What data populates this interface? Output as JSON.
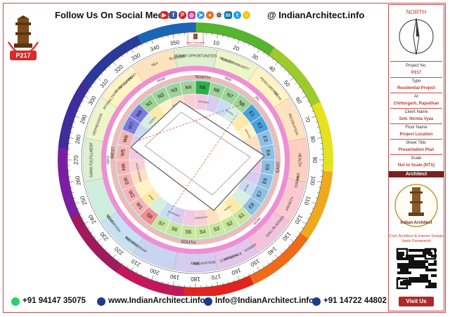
{
  "header": {
    "social_title": "Follow Us On Social Media",
    "website": "@ IndianArchitect.info"
  },
  "logo": {
    "code": "P217"
  },
  "footer": {
    "phone1": "+91 94147 35075",
    "website": "www.IndianArchitect.info",
    "email": "Info@IndianArchitect.info",
    "phone2": "+91 14722 44802"
  },
  "panel": {
    "north": "NORTH",
    "project_no_label": "Project No.",
    "project_no": "P217",
    "type_label": "Type",
    "type": "Residential Project",
    "at_label": "At",
    "at": "Chittorgarh, Rajasthan",
    "client_label": "Client Name",
    "client": "Smt. Nirmla Vyas",
    "floor_label": "Floor Name",
    "floor": "Project Location",
    "sheet_label": "Sheet Title:",
    "sheet": "Presentation Plan",
    "scale_label": "Scale",
    "scale": "Not to Scale (NTS)",
    "architect_label": "Architect",
    "firm_line1": "Civil, Architect & Interior Design",
    "firm_line2": "Vastu Paramarsh",
    "visit": "Visit Us",
    "emblem_text": "Indian Architect"
  },
  "wheel": {
    "degrees": [
      "0",
      "10",
      "20",
      "30",
      "40",
      "50",
      "60",
      "70",
      "80",
      "90",
      "100",
      "110",
      "120",
      "130",
      "140",
      "150",
      "160",
      "170",
      "180",
      "190",
      "200",
      "210",
      "220",
      "230",
      "240",
      "250",
      "260",
      "270",
      "280",
      "290",
      "300",
      "310",
      "320",
      "330",
      "340",
      "350"
    ],
    "center_badge": "Vastu Paramarsh",
    "influences": [
      {
        "t": "MONEY OPPORTUNITIES",
        "a": 0
      },
      {
        "t": "HEALTH IMMUNITY",
        "a": 22
      },
      {
        "t": "ATTRACTION",
        "a": 305
      },
      {
        "t": "SEX",
        "a": 337
      },
      {
        "t": "BLADDER",
        "a": 350
      },
      {
        "t": "KIDNEY",
        "a": 18
      },
      {
        "t": "IDEAS",
        "a": 52
      },
      {
        "t": "PERICARDIUM",
        "a": 45
      },
      {
        "t": "INTESTINE",
        "a": 318
      },
      {
        "t": "BANK SUPPORT",
        "a": 318
      },
      {
        "t": "DEPRESSION",
        "a": 290
      },
      {
        "t": "GAINS FULFILLMENT",
        "a": 270
      },
      {
        "t": "EDUCATION",
        "a": 232
      },
      {
        "t": "SAVINGS",
        "a": 218
      },
      {
        "t": "RELATIONSHIP",
        "a": 215
      },
      {
        "t": "FAME",
        "a": 180
      },
      {
        "t": "RELAXATION",
        "a": 175
      },
      {
        "t": "CONFIDENCE",
        "a": 160
      },
      {
        "t": "POWER",
        "a": 148
      },
      {
        "t": "SPLEEN",
        "a": 160
      },
      {
        "t": "ANXIETY",
        "a": 115
      },
      {
        "t": "SOCIAL",
        "a": 102
      },
      {
        "t": "LIVER",
        "a": 100
      },
      {
        "t": "GALL BLADDER",
        "a": 130
      },
      {
        "t": "HEART",
        "a": 235
      },
      {
        "t": "HEALTH",
        "a": 90
      },
      {
        "t": "RECREATION",
        "a": 70
      }
    ],
    "rings": {
      "directions": [
        {
          "t": "NORTH",
          "a": 5
        },
        {
          "t": "EAST",
          "a": 95
        },
        {
          "t": "SOUTH",
          "a": 185
        },
        {
          "t": "WEST",
          "a": 275
        }
      ],
      "elements": [
        {
          "t": "VAYU",
          "a": 270
        },
        {
          "t": "AGNI",
          "a": 135
        },
        {
          "t": "JAL",
          "a": 45
        },
        {
          "t": "NNE",
          "a": 22
        },
        {
          "t": "NNW",
          "a": 337
        }
      ]
    },
    "pads": [
      "N1",
      "N2",
      "N3",
      "N4",
      "N5",
      "N6",
      "N7",
      "N8",
      "E1",
      "E2",
      "E3",
      "E4",
      "E5",
      "E6",
      "E7",
      "E8",
      "S1",
      "S2",
      "S3",
      "S4",
      "S5",
      "S6",
      "S7",
      "S8",
      "W1",
      "W2",
      "W3",
      "W4",
      "W5",
      "W6",
      "W7",
      "W8"
    ],
    "devtas_inner": [
      "ARYAMA",
      "SAVITA",
      "SAVITRA",
      "BHUDHAR",
      "MITRA",
      "INDRA",
      "PARJANYA",
      "VIVASWAN",
      "APAH",
      "RAJA YAKSHMA",
      "PAPYAKSHMA",
      "RUDRA",
      "ROGA"
    ]
  }
}
